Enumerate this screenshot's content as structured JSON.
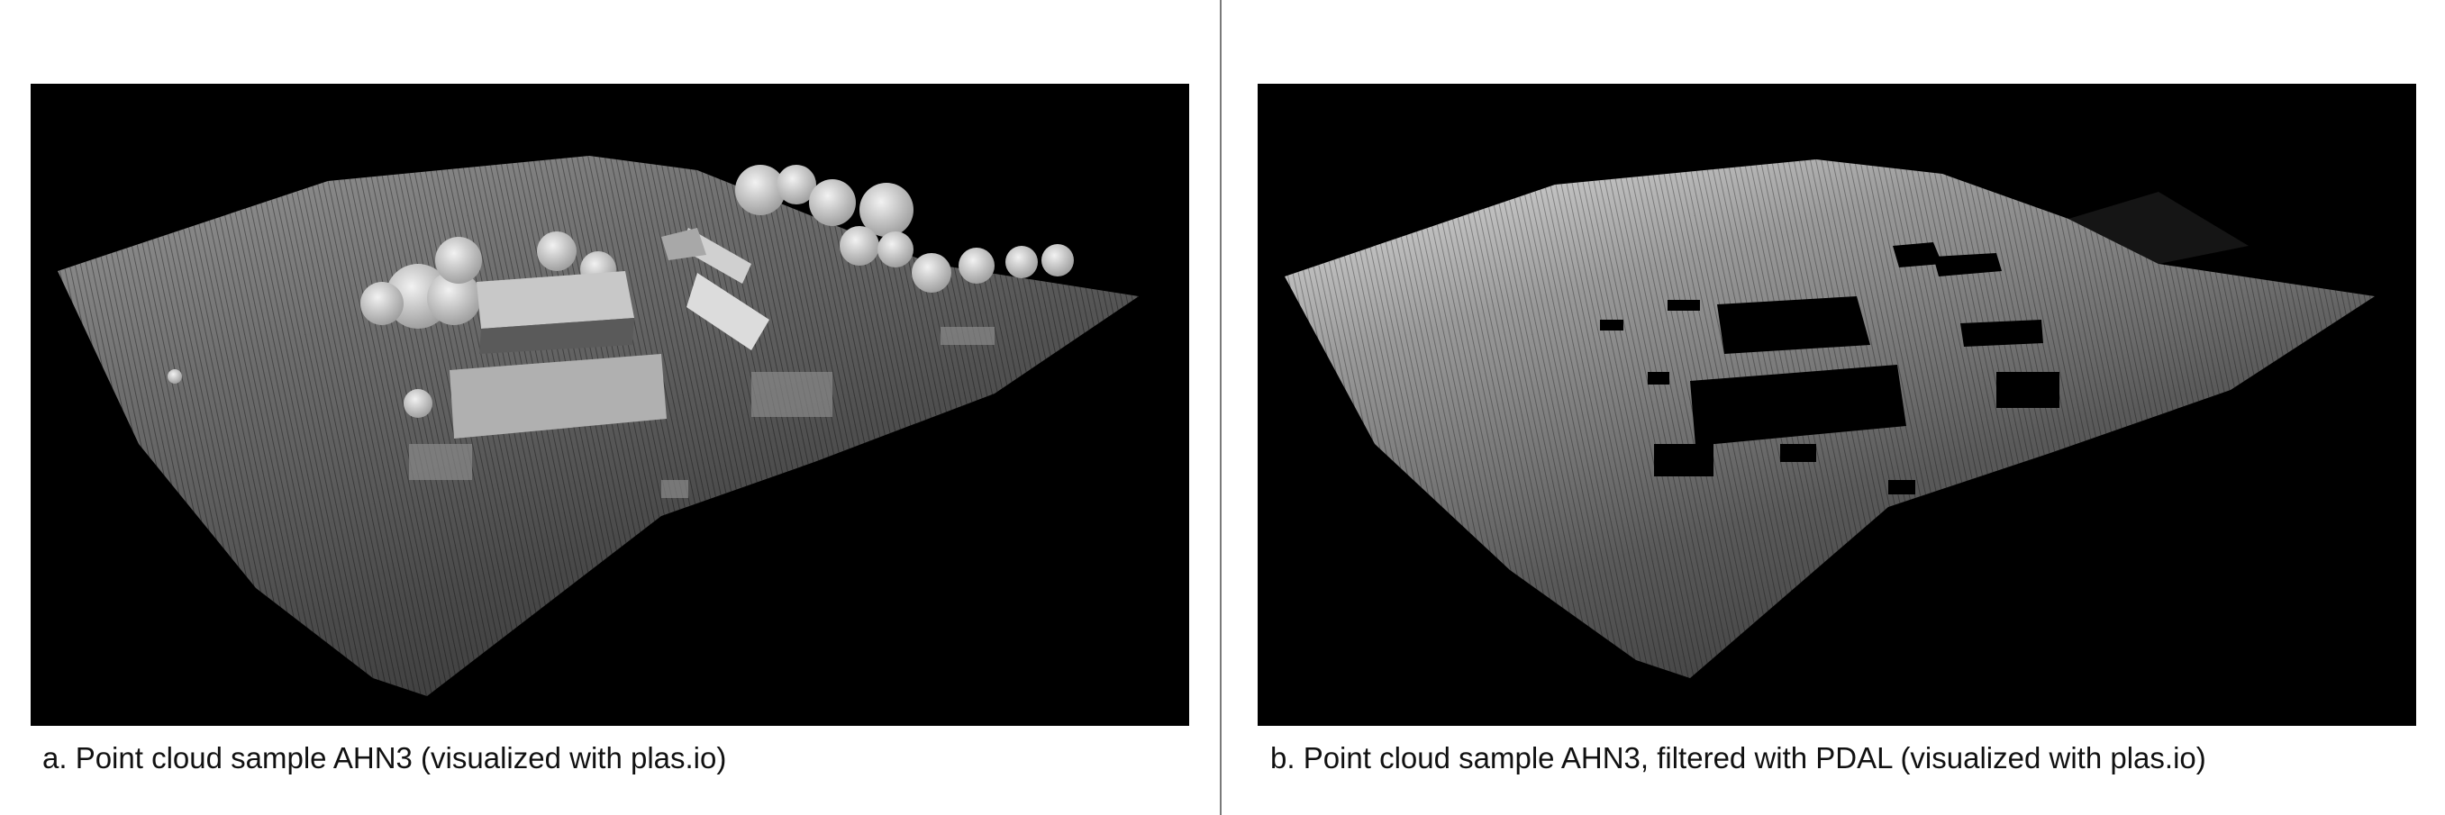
{
  "figure": {
    "panel_a": {
      "caption": "a. Point cloud sample AHN3 (visualized with plas.io)"
    },
    "panel_b": {
      "caption": "b. Point cloud sample AHN3, filtered with PDAL (visualized with plas.io)"
    }
  }
}
